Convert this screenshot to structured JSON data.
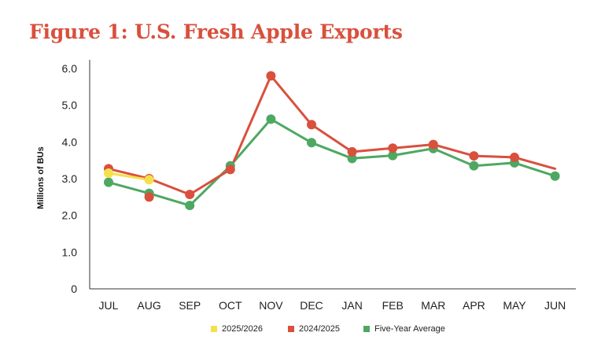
{
  "chart_data": {
    "type": "line",
    "title": "Figure 1: U.S. Fresh Apple Exports",
    "xlabel": "",
    "ylabel": "Millions of BUs",
    "ylim": [
      0,
      6
    ],
    "yticks": [
      "0",
      "1.0",
      "2.0",
      "3.0",
      "4.0",
      "5.0",
      "6.0"
    ],
    "categories": [
      "JUL",
      "AUG",
      "SEP",
      "OCT",
      "NOV",
      "DEC",
      "JAN",
      "FEB",
      "MAR",
      "APR",
      "MAY",
      "JUN"
    ],
    "series": [
      {
        "name": "2025/2026",
        "color": "#f5e04c",
        "values": [
          3.15,
          2.97,
          null,
          null,
          null,
          null,
          null,
          null,
          null,
          null,
          null,
          null
        ]
      },
      {
        "name": "2024/2025",
        "color": "#d9503d",
        "values": [
          3.27,
          3.0,
          2.57,
          3.25,
          5.8,
          4.47,
          3.73,
          3.83,
          3.93,
          3.62,
          3.58,
          3.27
        ],
        "extra_points": [
          {
            "category": "AUG",
            "value": 2.5
          }
        ],
        "hide_marker_indices": [
          11
        ]
      },
      {
        "name": "Five-Year Average",
        "color": "#4ea862",
        "values": [
          2.9,
          2.6,
          2.27,
          3.35,
          4.62,
          3.98,
          3.55,
          3.63,
          3.82,
          3.35,
          3.43,
          3.07
        ]
      }
    ]
  }
}
